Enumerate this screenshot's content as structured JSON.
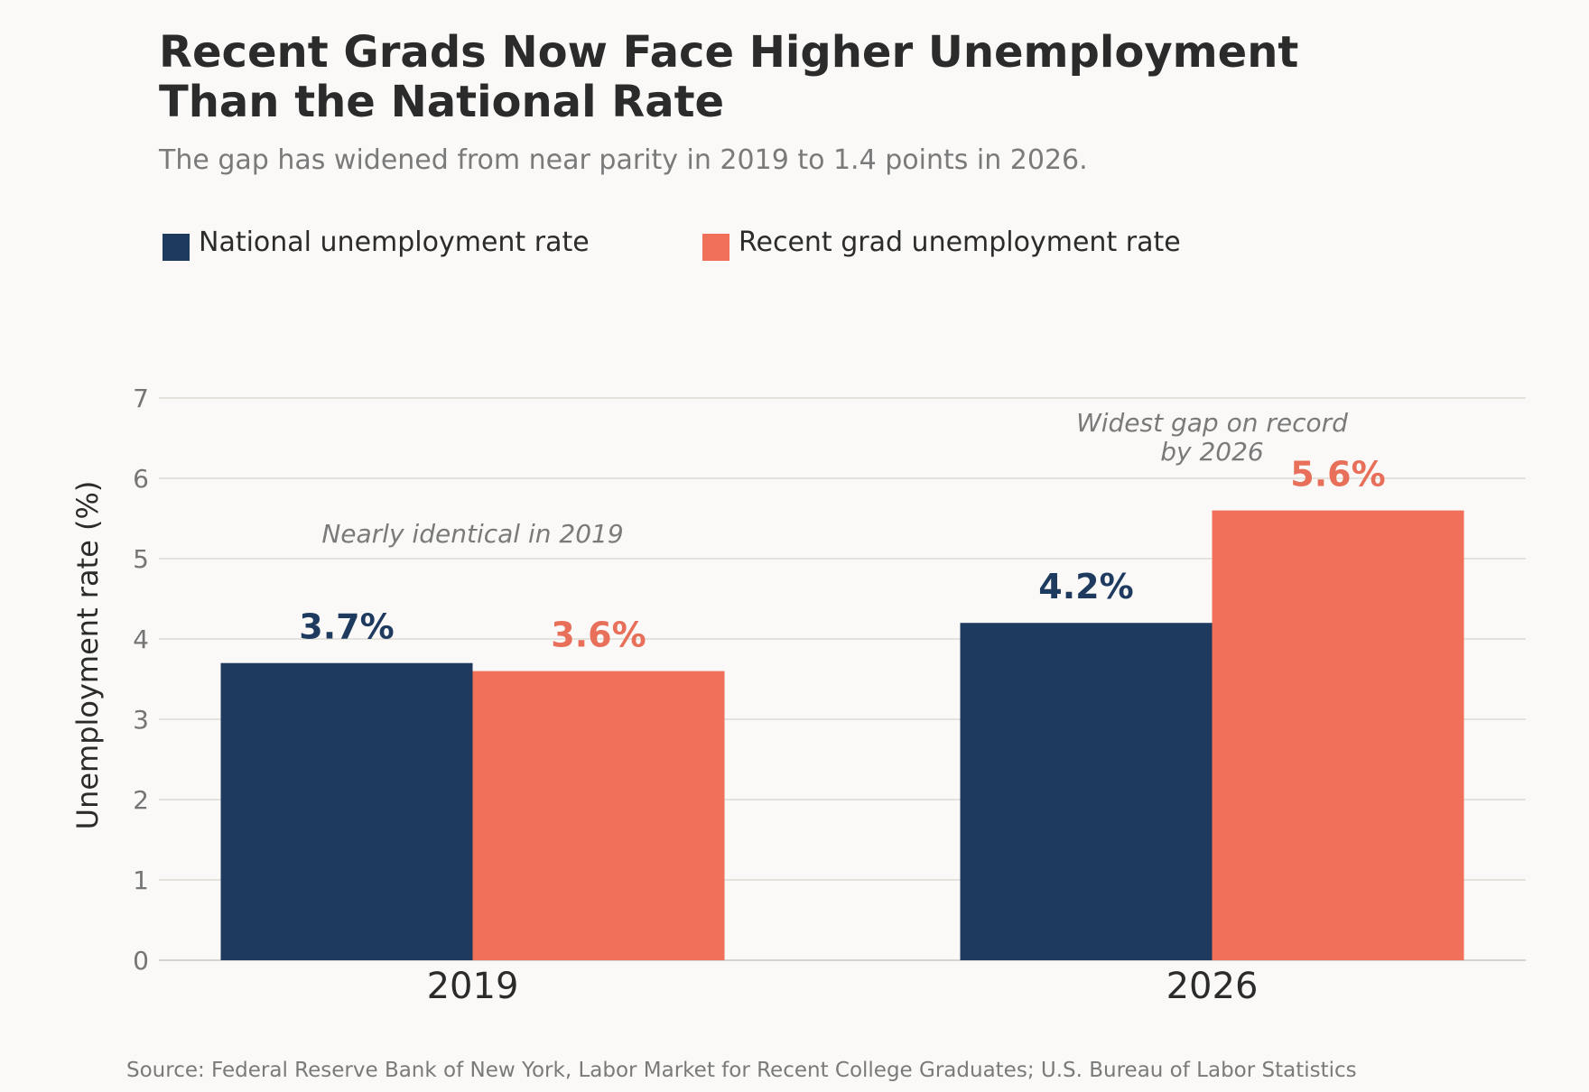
{
  "chart_data": {
    "type": "bar",
    "title_lines": [
      "Recent Grads Now Face Higher Unemployment",
      "Than the National Rate"
    ],
    "subtitle": "The gap has widened from near parity in 2019 to 1.4 points in 2026.",
    "categories": [
      "2019",
      "2026"
    ],
    "series": [
      {
        "name": "National unemployment rate",
        "color": "#1F3A5F",
        "values": [
          3.7,
          4.2
        ],
        "labels": [
          "3.7%",
          "4.2%"
        ]
      },
      {
        "name": "Recent grad unemployment rate",
        "color": "#F0705A",
        "label_color": "#E8705A",
        "values": [
          3.6,
          5.6
        ],
        "labels": [
          "3.6%",
          "5.6%"
        ]
      }
    ],
    "ylabel": "Unemployment rate (%)",
    "ylim": [
      0,
      7
    ],
    "yticks": [
      "0",
      "1",
      "2",
      "3",
      "4",
      "5",
      "6",
      "7"
    ],
    "grid": true,
    "legend_position": "top-left",
    "annotations": [
      {
        "category": "2019",
        "lines": [
          "Nearly identical in 2019"
        ]
      },
      {
        "category": "2026",
        "lines": [
          "Widest gap on record",
          "by 2026"
        ]
      }
    ],
    "source": "Source: Federal Reserve Bank of New York, Labor Market for Recent College Graduates; U.S. Bureau of Labor Statistics"
  }
}
